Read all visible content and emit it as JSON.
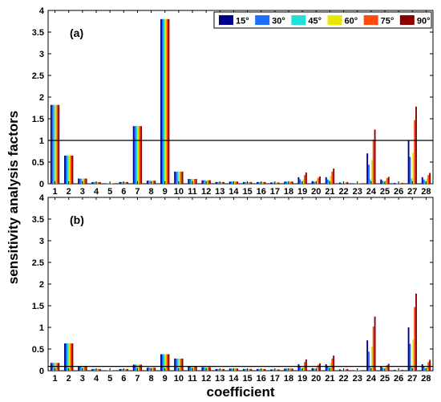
{
  "chart_data": {
    "type": "bar",
    "ylabel": "sensitivity analysis factors",
    "xlabel": "coefficient",
    "ylim": [
      0,
      4
    ],
    "yticks": [
      "0",
      "0.5",
      "1",
      "1.5",
      "2",
      "2.5",
      "3",
      "3.5",
      "4"
    ],
    "categories": [
      "1",
      "2",
      "3",
      "4",
      "5",
      "6",
      "7",
      "8",
      "9",
      "10",
      "11",
      "12",
      "13",
      "14",
      "15",
      "16",
      "17",
      "18",
      "19",
      "20",
      "21",
      "22",
      "23",
      "24",
      "25",
      "26",
      "27",
      "28"
    ],
    "legend_position": "top-right",
    "series_names": [
      "15°",
      "30°",
      "45°",
      "60°",
      "75°",
      "90°"
    ],
    "series_colors": [
      "#00008B",
      "#1E6EFF",
      "#20E0D8",
      "#E8E800",
      "#FF4A10",
      "#8B0000"
    ],
    "panels": [
      {
        "label": "(a)",
        "reference_line": 1,
        "series": [
          {
            "name": "15°",
            "values": [
              1.82,
              0.65,
              0.12,
              0.04,
              0.01,
              0.04,
              1.33,
              0.07,
              3.8,
              0.28,
              0.11,
              0.08,
              0.04,
              0.05,
              0.04,
              0.04,
              0.03,
              0.05,
              0.15,
              0.06,
              0.15,
              0.03,
              0.01,
              0.7,
              0.1,
              0.02,
              1.0,
              0.15
            ]
          },
          {
            "name": "30°",
            "values": [
              1.82,
              0.65,
              0.12,
              0.04,
              0.01,
              0.04,
              1.33,
              0.07,
              3.8,
              0.28,
              0.11,
              0.08,
              0.04,
              0.05,
              0.04,
              0.04,
              0.03,
              0.05,
              0.1,
              0.05,
              0.1,
              0.02,
              0.01,
              0.44,
              0.07,
              0.01,
              0.62,
              0.1
            ]
          },
          {
            "name": "45°",
            "values": [
              1.82,
              0.65,
              0.12,
              0.04,
              0.01,
              0.04,
              1.33,
              0.07,
              3.8,
              0.28,
              0.11,
              0.08,
              0.04,
              0.05,
              0.04,
              0.04,
              0.03,
              0.05,
              0.05,
              0.04,
              0.08,
              0.01,
              0.01,
              0.1,
              0.04,
              0.01,
              0.12,
              0.06
            ]
          },
          {
            "name": "60°",
            "values": [
              1.82,
              0.65,
              0.12,
              0.04,
              0.01,
              0.04,
              1.33,
              0.07,
              3.8,
              0.28,
              0.11,
              0.08,
              0.04,
              0.05,
              0.04,
              0.04,
              0.03,
              0.05,
              0.1,
              0.1,
              0.18,
              0.02,
              0.01,
              0.55,
              0.08,
              0.01,
              0.72,
              0.12
            ]
          },
          {
            "name": "75°",
            "values": [
              1.82,
              0.65,
              0.12,
              0.04,
              0.01,
              0.04,
              1.33,
              0.07,
              3.8,
              0.28,
              0.11,
              0.08,
              0.04,
              0.05,
              0.04,
              0.04,
              0.03,
              0.05,
              0.2,
              0.14,
              0.28,
              0.03,
              0.01,
              1.02,
              0.13,
              0.02,
              1.47,
              0.2
            ]
          },
          {
            "name": "90°",
            "values": [
              1.82,
              0.65,
              0.12,
              0.04,
              0.01,
              0.04,
              1.33,
              0.07,
              3.8,
              0.28,
              0.11,
              0.08,
              0.04,
              0.05,
              0.04,
              0.04,
              0.03,
              0.05,
              0.26,
              0.17,
              0.35,
              0.04,
              0.01,
              1.25,
              0.16,
              0.02,
              1.78,
              0.25
            ]
          }
        ]
      },
      {
        "label": "(b)",
        "reference_line": 0.1,
        "series": [
          {
            "name": "15°",
            "values": [
              0.18,
              0.63,
              0.11,
              0.04,
              0.01,
              0.04,
              0.14,
              0.07,
              0.38,
              0.28,
              0.1,
              0.08,
              0.04,
              0.05,
              0.04,
              0.04,
              0.03,
              0.05,
              0.15,
              0.06,
              0.15,
              0.03,
              0.01,
              0.7,
              0.1,
              0.02,
              1.0,
              0.15
            ]
          },
          {
            "name": "30°",
            "values": [
              0.18,
              0.63,
              0.11,
              0.04,
              0.01,
              0.04,
              0.14,
              0.07,
              0.38,
              0.28,
              0.1,
              0.08,
              0.04,
              0.05,
              0.04,
              0.04,
              0.03,
              0.05,
              0.1,
              0.05,
              0.1,
              0.02,
              0.01,
              0.44,
              0.07,
              0.01,
              0.62,
              0.1
            ]
          },
          {
            "name": "45°",
            "values": [
              0.18,
              0.63,
              0.11,
              0.04,
              0.01,
              0.04,
              0.14,
              0.07,
              0.38,
              0.28,
              0.1,
              0.08,
              0.04,
              0.05,
              0.04,
              0.04,
              0.03,
              0.05,
              0.05,
              0.04,
              0.08,
              0.01,
              0.01,
              0.1,
              0.04,
              0.01,
              0.12,
              0.06
            ]
          },
          {
            "name": "60°",
            "values": [
              0.18,
              0.63,
              0.11,
              0.04,
              0.01,
              0.04,
              0.14,
              0.07,
              0.38,
              0.28,
              0.1,
              0.08,
              0.04,
              0.05,
              0.04,
              0.04,
              0.03,
              0.05,
              0.1,
              0.1,
              0.18,
              0.02,
              0.01,
              0.55,
              0.08,
              0.01,
              0.72,
              0.12
            ]
          },
          {
            "name": "75°",
            "values": [
              0.18,
              0.63,
              0.11,
              0.04,
              0.01,
              0.04,
              0.14,
              0.07,
              0.38,
              0.28,
              0.1,
              0.08,
              0.04,
              0.05,
              0.04,
              0.04,
              0.03,
              0.05,
              0.2,
              0.14,
              0.28,
              0.03,
              0.01,
              1.02,
              0.13,
              0.02,
              1.47,
              0.2
            ]
          },
          {
            "name": "90°",
            "values": [
              0.18,
              0.63,
              0.11,
              0.04,
              0.01,
              0.04,
              0.14,
              0.07,
              0.38,
              0.28,
              0.1,
              0.08,
              0.04,
              0.05,
              0.04,
              0.04,
              0.03,
              0.05,
              0.26,
              0.17,
              0.35,
              0.04,
              0.01,
              1.25,
              0.16,
              0.02,
              1.78,
              0.25
            ]
          }
        ]
      }
    ]
  }
}
